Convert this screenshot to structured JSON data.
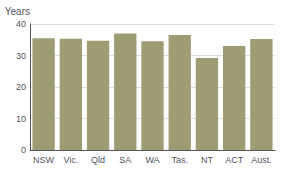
{
  "chart_data": {
    "type": "bar",
    "ylabel": "Years",
    "categories": [
      "NSW",
      "Vic.",
      "Qld",
      "SA",
      "WA",
      "Tas.",
      "NT",
      "ACT",
      "Aust."
    ],
    "values": [
      35.5,
      35.3,
      34.7,
      37.0,
      34.5,
      36.5,
      29.2,
      33.0,
      35.2
    ],
    "color": "#9e9c72",
    "ylim": [
      0,
      40
    ],
    "yticks": [
      0,
      10,
      20,
      30,
      40
    ],
    "grid": true
  }
}
